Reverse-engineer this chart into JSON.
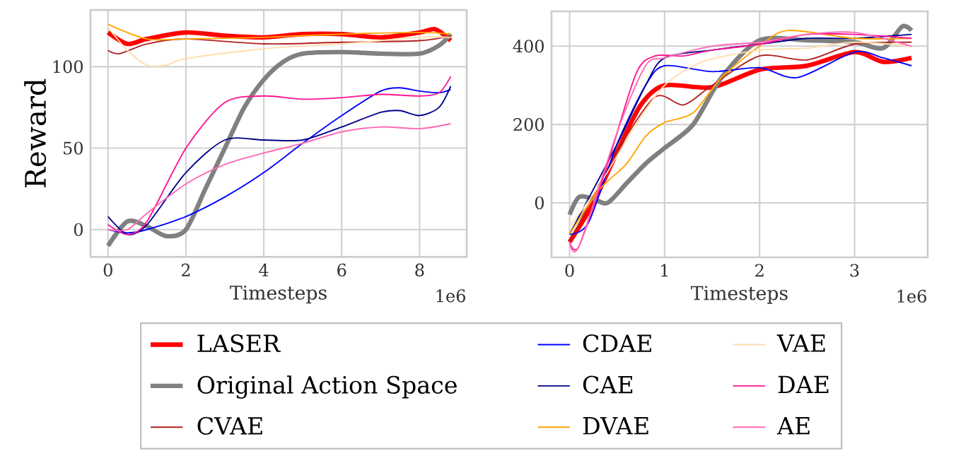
{
  "chart_data": [
    {
      "type": "line",
      "xlabel": "Timesteps",
      "ylabel": "Reward",
      "annotations": [
        "1e6"
      ],
      "xlim": [
        -0.45,
        9.21
      ],
      "ylim": [
        -16.8,
        134.8
      ],
      "xticks": [
        0,
        2,
        4,
        6,
        8
      ],
      "yticks": [
        0,
        50,
        100
      ],
      "grid": true,
      "legend": "bottom",
      "series": [
        {
          "name": "LASER",
          "color": "#ff0000",
          "x": [
            0,
            0.5,
            1,
            2,
            3,
            4,
            5,
            6,
            7,
            8,
            8.4,
            8.8
          ],
          "values": [
            121,
            114,
            117,
            121,
            119,
            118,
            120,
            120,
            118,
            121,
            123,
            116
          ]
        },
        {
          "name": "Original Action Space",
          "color": "#808080",
          "x": [
            0,
            0.5,
            1,
            1.5,
            2,
            2.5,
            3,
            3.5,
            4,
            4.5,
            5,
            6,
            7,
            8,
            8.5,
            8.8
          ],
          "values": [
            -10,
            5,
            2,
            -4,
            0,
            25,
            50,
            75,
            92,
            103,
            108,
            109,
            108,
            108,
            113,
            120
          ]
        },
        {
          "name": "CVAE",
          "color": "#b22222",
          "x": [
            0,
            0.3,
            1,
            2,
            4,
            6,
            8,
            8.8
          ],
          "values": [
            110,
            108,
            114,
            117,
            114,
            115,
            116,
            119
          ]
        },
        {
          "name": "CDAE",
          "color": "#0000ff",
          "x": [
            0,
            0.5,
            1,
            2,
            3,
            4,
            5,
            6,
            7,
            7.5,
            8,
            8.5,
            8.8
          ],
          "values": [
            0,
            -2,
            0,
            8,
            20,
            35,
            53,
            70,
            85,
            87,
            85,
            84,
            86
          ]
        },
        {
          "name": "CAE",
          "color": "#00008b",
          "x": [
            0,
            0.5,
            1,
            2,
            3,
            4,
            5,
            6,
            7,
            7.5,
            8,
            8.5,
            8.8
          ],
          "values": [
            8,
            -3,
            3,
            35,
            55,
            55,
            55,
            63,
            72,
            73,
            70,
            75,
            88
          ]
        },
        {
          "name": "DVAE",
          "color": "#ffa500",
          "x": [
            0,
            1,
            2,
            4,
            6,
            8,
            8.8
          ],
          "values": [
            126,
            117,
            117,
            118,
            120,
            121,
            120
          ]
        },
        {
          "name": "VAE",
          "color": "#ffdead",
          "x": [
            0,
            0.5,
            1,
            1.5,
            2,
            4,
            6,
            8,
            8.8
          ],
          "values": [
            124,
            110,
            101,
            101,
            105,
            111,
            114,
            118,
            118
          ]
        },
        {
          "name": "DAE",
          "color": "#ff1493",
          "x": [
            0,
            0.5,
            1,
            2,
            3,
            4,
            5,
            6,
            7,
            8,
            8.5,
            8.8
          ],
          "values": [
            3,
            -3,
            5,
            50,
            78,
            82,
            80,
            81,
            83,
            82,
            84,
            94
          ]
        },
        {
          "name": "AE",
          "color": "#ff69b4",
          "x": [
            0,
            0.5,
            1,
            2,
            3,
            4,
            5,
            6,
            7,
            8,
            8.8
          ],
          "values": [
            0,
            0,
            10,
            28,
            40,
            47,
            53,
            60,
            63,
            62,
            65
          ]
        }
      ]
    },
    {
      "type": "line",
      "xlabel": "Timesteps",
      "annotations": [
        "1e6"
      ],
      "xlim": [
        -0.19,
        3.77
      ],
      "ylim": [
        -139,
        489
      ],
      "xticks": [
        0,
        1,
        2,
        3
      ],
      "yticks": [
        0,
        200,
        400
      ],
      "grid": true,
      "series": [
        {
          "color": "#ff0000",
          "x": [
            0,
            0.25,
            0.5,
            0.75,
            1,
            1.5,
            2,
            2.5,
            3,
            3.3,
            3.6
          ],
          "values": [
            -100,
            0,
            130,
            250,
            300,
            295,
            340,
            350,
            385,
            360,
            370
          ]
        },
        {
          "color": "#808080",
          "x": [
            0,
            0.1,
            0.25,
            0.4,
            0.6,
            0.8,
            1,
            1.3,
            1.6,
            2,
            2.5,
            3,
            3.3,
            3.5,
            3.6
          ],
          "values": [
            -30,
            15,
            10,
            0,
            50,
            100,
            140,
            200,
            320,
            415,
            415,
            410,
            395,
            450,
            440
          ]
        },
        {
          "color": "#b22222",
          "x": [
            0,
            0.5,
            0.9,
            1.2,
            1.5,
            2,
            2.5,
            3,
            3.6
          ],
          "values": [
            -100,
            130,
            270,
            250,
            300,
            375,
            365,
            405,
            410
          ]
        },
        {
          "color": "#0000ff",
          "x": [
            0,
            0.2,
            0.5,
            0.8,
            1,
            1.5,
            2,
            2.4,
            3,
            3.3,
            3.6
          ],
          "values": [
            -80,
            -50,
            150,
            300,
            350,
            335,
            345,
            320,
            385,
            370,
            350
          ]
        },
        {
          "color": "#00008b",
          "x": [
            0,
            0.5,
            0.8,
            1,
            1.5,
            2,
            2.5,
            3,
            3.6
          ],
          "values": [
            -80,
            150,
            300,
            370,
            390,
            405,
            420,
            420,
            430
          ]
        },
        {
          "color": "#ffa500",
          "x": [
            0,
            0.3,
            0.6,
            0.8,
            1,
            1.3,
            1.6,
            2,
            2.3,
            3,
            3.6
          ],
          "values": [
            -80,
            30,
            100,
            170,
            205,
            230,
            320,
            400,
            440,
            420,
            420
          ]
        },
        {
          "color": "#ffdead",
          "x": [
            0,
            0.3,
            0.7,
            1,
            1.4,
            2,
            2.5,
            3,
            3.6
          ],
          "values": [
            -60,
            40,
            200,
            300,
            360,
            390,
            395,
            410,
            400
          ]
        },
        {
          "color": "#ff1493",
          "x": [
            0,
            0.1,
            0.4,
            0.7,
            0.9,
            1.2,
            1.5,
            2,
            2.5,
            3,
            3.6
          ],
          "values": [
            -100,
            -110,
            100,
            330,
            375,
            375,
            390,
            405,
            430,
            430,
            420
          ]
        },
        {
          "color": "#ff69b4",
          "x": [
            0,
            0.1,
            0.5,
            0.8,
            1,
            1.5,
            2,
            2.5,
            3,
            3.6
          ],
          "values": [
            -100,
            -110,
            180,
            350,
            370,
            400,
            410,
            430,
            435,
            400
          ]
        }
      ]
    }
  ]
}
